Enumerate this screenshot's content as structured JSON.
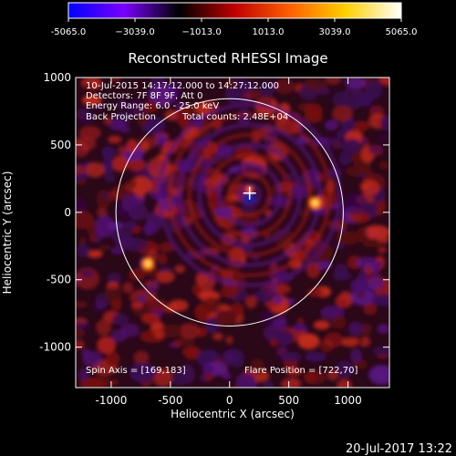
{
  "colorbar": {
    "min_label": "-5065.0",
    "ticks": [
      "-5065.0",
      "−3039.0",
      "−1013.0",
      "1013.0",
      "3039.0",
      "5065.0"
    ],
    "tick_values": [
      -5065.0,
      -3039.0,
      -1013.0,
      1013.0,
      3039.0,
      5065.0
    ],
    "range": [
      -5065.0,
      5065.0
    ],
    "colors": [
      "#0000ff",
      "#7a00ff",
      "#000000",
      "#c00000",
      "#ff6000",
      "#ffd000",
      "#ffffff"
    ]
  },
  "title": "Reconstructed RHESSI Image",
  "info": {
    "time": "10-Jul-2015 14:17:12.000 to 14:27:12.000",
    "detectors": "Detectors: 7F 8F 9F, Att 0",
    "energy": "Energy Range: 6.0 - 25.0 keV",
    "method": "Back Projection",
    "counts": "Total counts: 2.48E+04"
  },
  "footer_left": "Spin Axis = [169,183]",
  "footer_right": "Flare Position = [722,70]",
  "axes": {
    "xlabel": "Heliocentric X (arcsec)",
    "ylabel": "Heliocentric Y (arcsec)",
    "xlim": [
      -1300,
      1350
    ],
    "ylim": [
      -1300,
      1000
    ],
    "xticks": [
      {
        "value": -1000,
        "label": "-1000"
      },
      {
        "value": -500,
        "label": "-500"
      },
      {
        "value": 0,
        "label": "0"
      },
      {
        "value": 500,
        "label": "500"
      },
      {
        "value": 1000,
        "label": "1000"
      }
    ],
    "yticks": [
      {
        "value": 1000,
        "label": "1000"
      },
      {
        "value": 500,
        "label": "500"
      },
      {
        "value": 0,
        "label": "0"
      },
      {
        "value": -500,
        "label": "-500"
      },
      {
        "value": -1000,
        "label": "-1000"
      }
    ]
  },
  "solar_limb_radius_arcsec": 960,
  "spin_axis_arcsec": [
    169,
    183
  ],
  "bright_sources_arcsec": [
    [
      722,
      70
    ],
    [
      -690,
      -380
    ],
    [
      169,
      183
    ]
  ],
  "timestamp": "20-Jul-2017 13:22"
}
